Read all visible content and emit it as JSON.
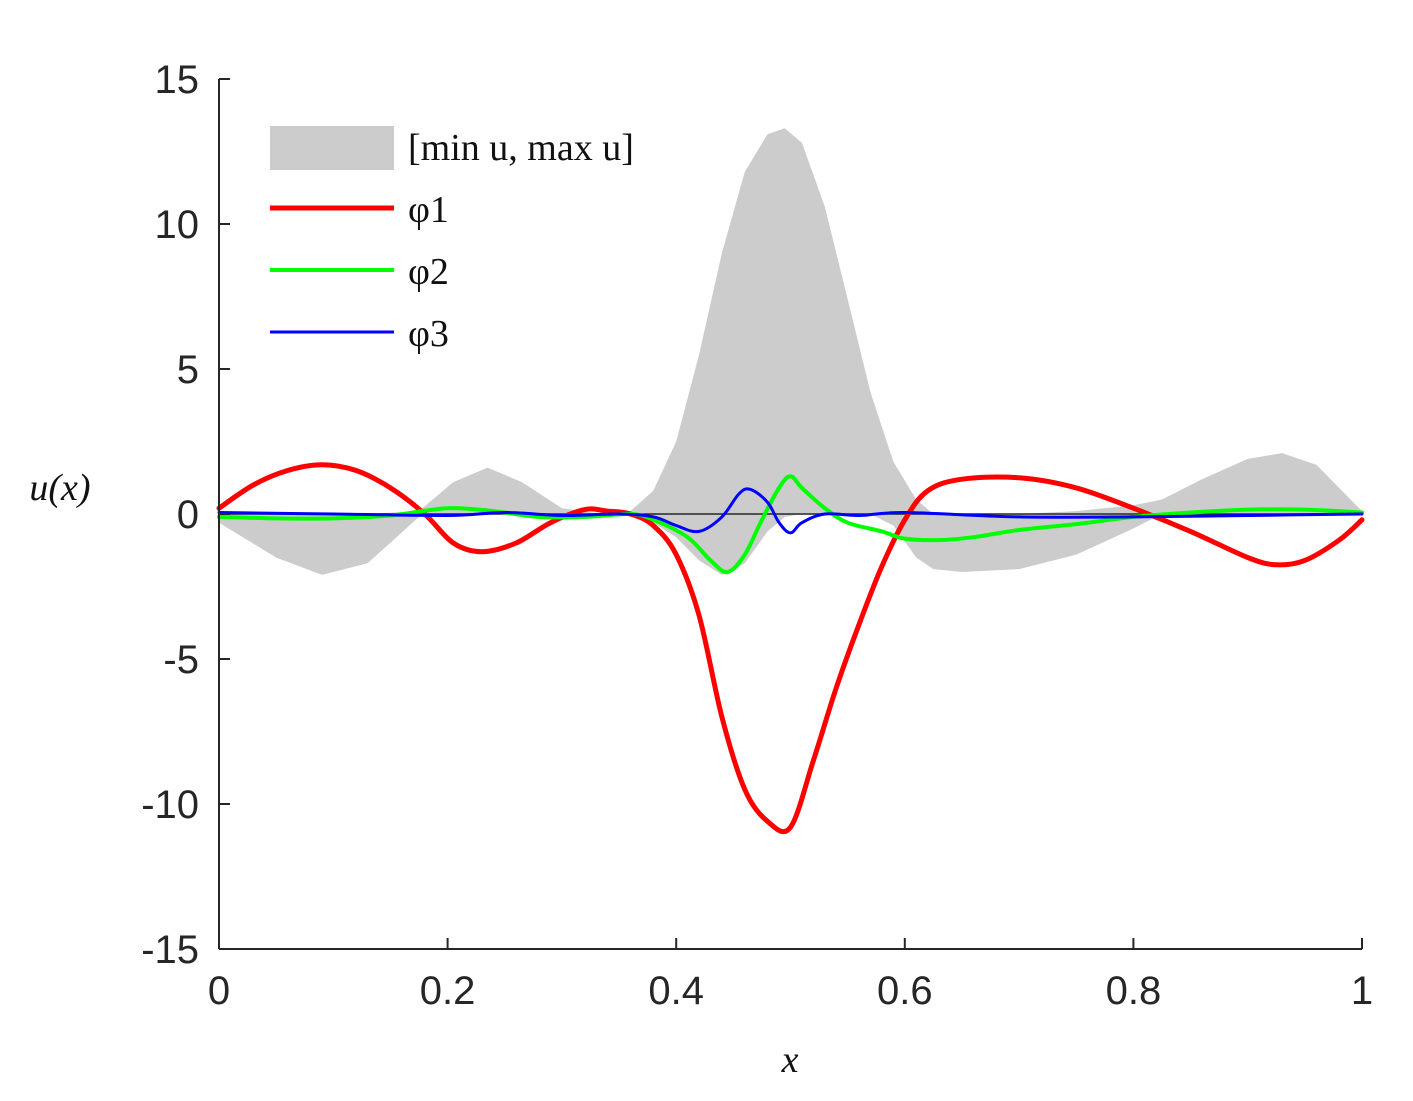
{
  "chart_data": {
    "type": "area",
    "xlabel": "x",
    "ylabel": "u(x)",
    "xlim": [
      0,
      1
    ],
    "ylim": [
      -15,
      15
    ],
    "xticks": [
      0,
      0.2,
      0.4,
      0.6,
      0.8,
      1
    ],
    "xtick_labels": [
      "0",
      "0.2",
      "0.4",
      "0.6",
      "0.8",
      "1"
    ],
    "yticks": [
      15,
      10,
      5,
      0,
      -5,
      -10,
      -15
    ],
    "ytick_labels": [
      "15",
      "10",
      "5",
      "0",
      "-5",
      "-10",
      "-15"
    ],
    "grid": false,
    "legend_position": "top-left",
    "band": {
      "name": "[min u,  max u]",
      "color": "#cccccc",
      "x": [
        0,
        0.05,
        0.09,
        0.13,
        0.175,
        0.205,
        0.235,
        0.265,
        0.3,
        0.335,
        0.36,
        0.38,
        0.4,
        0.42,
        0.44,
        0.46,
        0.48,
        0.495,
        0.51,
        0.53,
        0.55,
        0.57,
        0.59,
        0.61,
        0.625,
        0.65,
        0.7,
        0.75,
        0.8,
        0.825,
        0.86,
        0.9,
        0.93,
        0.96,
        1
      ],
      "upper": [
        0,
        0,
        0,
        0,
        0.1,
        1.1,
        1.6,
        1.1,
        0.2,
        0,
        0.1,
        0.8,
        2.5,
        5.5,
        9,
        11.8,
        13.1,
        13.3,
        12.8,
        10.6,
        7.4,
        4.2,
        1.8,
        0.5,
        0,
        0,
        0,
        0.1,
        0.3,
        0.5,
        1.2,
        1.9,
        2.1,
        1.7,
        0.1
      ],
      "lower": [
        -0.3,
        -1.5,
        -2.1,
        -1.7,
        -0.1,
        0,
        0,
        0,
        0,
        0,
        0,
        -0.3,
        -0.8,
        -1.6,
        -2.1,
        -1.7,
        -0.6,
        -0.1,
        0,
        0,
        0,
        0,
        -0.4,
        -1.5,
        -1.9,
        -2,
        -1.9,
        -1.4,
        -0.5,
        0,
        0,
        0,
        0,
        0,
        0
      ]
    },
    "series": [
      {
        "name": "φ1",
        "color": "#ff0000",
        "x": [
          0,
          0.03,
          0.06,
          0.09,
          0.12,
          0.15,
          0.18,
          0.205,
          0.23,
          0.26,
          0.29,
          0.32,
          0.34,
          0.36,
          0.38,
          0.4,
          0.42,
          0.44,
          0.46,
          0.48,
          0.5,
          0.52,
          0.54,
          0.56,
          0.58,
          0.6,
          0.62,
          0.65,
          0.7,
          0.75,
          0.8,
          0.85,
          0.9,
          0.925,
          0.95,
          0.98,
          1
        ],
        "y": [
          0.2,
          1.0,
          1.5,
          1.7,
          1.5,
          0.9,
          0.0,
          -1.0,
          -1.3,
          -1.0,
          -0.3,
          0.15,
          0.1,
          0.0,
          -0.4,
          -1.4,
          -3.5,
          -7,
          -9.5,
          -10.6,
          -10.8,
          -8.5,
          -6,
          -3.8,
          -1.8,
          -0.2,
          0.8,
          1.2,
          1.25,
          0.9,
          0.2,
          -0.6,
          -1.5,
          -1.75,
          -1.6,
          -0.9,
          -0.2
        ]
      },
      {
        "name": "φ2",
        "color": "#00ff00",
        "x": [
          0,
          0.05,
          0.1,
          0.15,
          0.2,
          0.24,
          0.28,
          0.32,
          0.36,
          0.38,
          0.41,
          0.43,
          0.445,
          0.46,
          0.475,
          0.49,
          0.5,
          0.51,
          0.53,
          0.55,
          0.58,
          0.6,
          0.63,
          0.66,
          0.7,
          0.75,
          0.8,
          0.85,
          0.9,
          0.95,
          1
        ],
        "y": [
          -0.1,
          -0.15,
          -0.15,
          -0.05,
          0.2,
          0.1,
          -0.1,
          -0.1,
          0.0,
          -0.2,
          -0.8,
          -1.6,
          -2.0,
          -1.4,
          -0.2,
          0.9,
          1.3,
          0.9,
          0.2,
          -0.3,
          -0.6,
          -0.85,
          -0.9,
          -0.8,
          -0.55,
          -0.35,
          -0.1,
          0.05,
          0.15,
          0.15,
          0.05
        ]
      },
      {
        "name": "φ3",
        "color": "#0000ff",
        "x": [
          0,
          0.1,
          0.2,
          0.25,
          0.3,
          0.35,
          0.38,
          0.4,
          0.42,
          0.44,
          0.455,
          0.465,
          0.48,
          0.49,
          0.5,
          0.51,
          0.53,
          0.56,
          0.6,
          0.7,
          0.8,
          0.9,
          1
        ],
        "y": [
          0.05,
          0.0,
          -0.05,
          0.05,
          -0.05,
          0.0,
          -0.1,
          -0.4,
          -0.6,
          -0.1,
          0.7,
          0.85,
          0.4,
          -0.3,
          -0.65,
          -0.3,
          0.0,
          -0.05,
          0.05,
          -0.1,
          -0.1,
          -0.05,
          0.0
        ]
      }
    ]
  }
}
